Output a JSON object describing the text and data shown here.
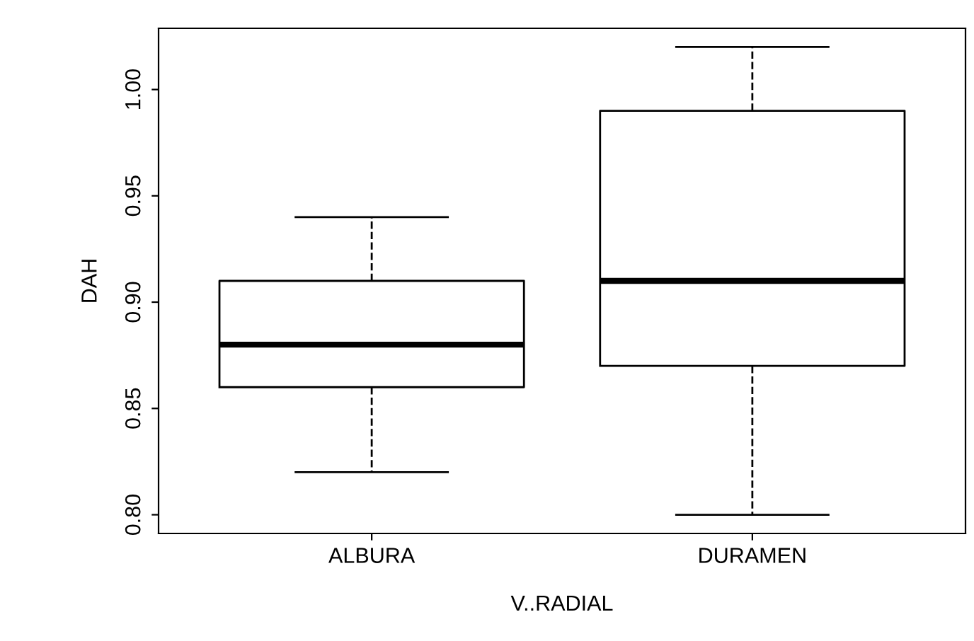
{
  "chart_data": {
    "type": "box",
    "xlabel": "V..RADIAL",
    "ylabel": "DAH",
    "categories": [
      "ALBURA",
      "DURAMEN"
    ],
    "boxes": [
      {
        "low": 0.82,
        "q1": 0.86,
        "median": 0.88,
        "q3": 0.91,
        "high": 0.94
      },
      {
        "low": 0.8,
        "q1": 0.87,
        "median": 0.91,
        "q3": 0.99,
        "high": 1.02
      }
    ],
    "ylim": [
      0.7912,
      1.0288
    ],
    "yticks": [
      {
        "value": 0.8,
        "label": "0.80"
      },
      {
        "value": 0.85,
        "label": "0.85"
      },
      {
        "value": 0.9,
        "label": "0.90"
      },
      {
        "value": 0.95,
        "label": "0.95"
      },
      {
        "value": 1.0,
        "label": "1.00"
      }
    ],
    "grid": false
  }
}
